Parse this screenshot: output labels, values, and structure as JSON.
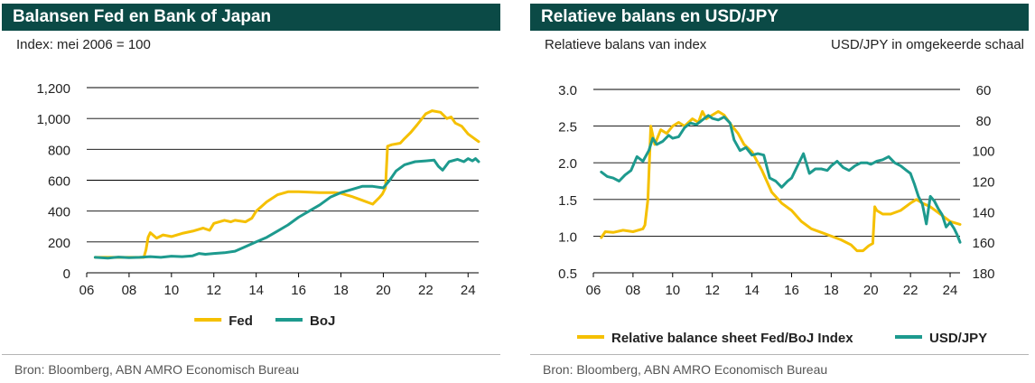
{
  "colors": {
    "header_bg": "#0b4a46",
    "fed": "#f5c000",
    "boj": "#1d9a8e",
    "grid": "#000000"
  },
  "left": {
    "title": "Balansen Fed en Bank of Japan",
    "subtitle": "Index: mei 2006 = 100",
    "source": "Bron: Bloomberg, ABN AMRO Economisch Bureau",
    "legend": [
      "Fed",
      "BoJ"
    ]
  },
  "right": {
    "title": "Relatieve balans en USD/JPY",
    "subtitle_left": "Relatieve balans van index",
    "subtitle_right": "USD/JPY in omgekeerde schaal",
    "source": "Bron: Bloomberg, ABN AMRO Economisch Bureau",
    "legend": [
      "Relative balance sheet Fed/BoJ Index",
      "USD/JPY"
    ]
  },
  "chart_data": [
    {
      "type": "line",
      "title": "Balansen Fed en Bank of Japan",
      "xlabel": "",
      "ylabel": "Index: mei 2006 = 100",
      "x_ticks": [
        "06",
        "08",
        "10",
        "12",
        "14",
        "16",
        "18",
        "20",
        "22",
        "24"
      ],
      "xlim": [
        2006,
        2024.5
      ],
      "y_ticks": [
        "0",
        "200",
        "400",
        "600",
        "800",
        "1,000",
        "1,200"
      ],
      "ylim": [
        0,
        1200
      ],
      "grid": "horizontal",
      "legend_position": "bottom",
      "series": [
        {
          "name": "Fed",
          "color": "#f5c000",
          "points": [
            [
              2006.4,
              100
            ],
            [
              2007,
              100
            ],
            [
              2008,
              100
            ],
            [
              2008.7,
              100
            ],
            [
              2008.8,
              150
            ],
            [
              2008.9,
              230
            ],
            [
              2009,
              260
            ],
            [
              2009.3,
              225
            ],
            [
              2009.6,
              245
            ],
            [
              2010,
              235
            ],
            [
              2010.5,
              255
            ],
            [
              2011,
              270
            ],
            [
              2011.5,
              290
            ],
            [
              2011.8,
              275
            ],
            [
              2012,
              320
            ],
            [
              2012.5,
              340
            ],
            [
              2012.8,
              330
            ],
            [
              2013,
              340
            ],
            [
              2013.5,
              330
            ],
            [
              2013.8,
              355
            ],
            [
              2014,
              400
            ],
            [
              2014.5,
              460
            ],
            [
              2015,
              505
            ],
            [
              2015.5,
              525
            ],
            [
              2016,
              525
            ],
            [
              2017,
              520
            ],
            [
              2017.7,
              520
            ],
            [
              2018,
              515
            ],
            [
              2018.5,
              495
            ],
            [
              2019,
              470
            ],
            [
              2019.5,
              445
            ],
            [
              2019.8,
              485
            ],
            [
              2019.95,
              510
            ],
            [
              2020.1,
              550
            ],
            [
              2020.2,
              820
            ],
            [
              2020.4,
              830
            ],
            [
              2020.8,
              840
            ],
            [
              2021,
              870
            ],
            [
              2021.3,
              910
            ],
            [
              2021.6,
              960
            ],
            [
              2022,
              1030
            ],
            [
              2022.3,
              1050
            ],
            [
              2022.7,
              1040
            ],
            [
              2023,
              1000
            ],
            [
              2023.2,
              1010
            ],
            [
              2023.4,
              970
            ],
            [
              2023.7,
              950
            ],
            [
              2024,
              900
            ],
            [
              2024.3,
              870
            ],
            [
              2024.5,
              850
            ]
          ]
        },
        {
          "name": "BoJ",
          "color": "#1d9a8e",
          "points": [
            [
              2006.4,
              100
            ],
            [
              2007,
              95
            ],
            [
              2007.5,
              102
            ],
            [
              2008,
              98
            ],
            [
              2008.5,
              100
            ],
            [
              2009,
              105
            ],
            [
              2009.5,
              100
            ],
            [
              2010,
              108
            ],
            [
              2010.5,
              105
            ],
            [
              2011,
              110
            ],
            [
              2011.3,
              125
            ],
            [
              2011.6,
              120
            ],
            [
              2012,
              125
            ],
            [
              2012.5,
              130
            ],
            [
              2013,
              140
            ],
            [
              2013.5,
              170
            ],
            [
              2014,
              200
            ],
            [
              2014.5,
              230
            ],
            [
              2015,
              270
            ],
            [
              2015.5,
              310
            ],
            [
              2016,
              360
            ],
            [
              2016.5,
              400
            ],
            [
              2017,
              440
            ],
            [
              2017.5,
              490
            ],
            [
              2018,
              520
            ],
            [
              2018.5,
              540
            ],
            [
              2019,
              560
            ],
            [
              2019.5,
              560
            ],
            [
              2020,
              550
            ],
            [
              2020.3,
              600
            ],
            [
              2020.6,
              660
            ],
            [
              2021,
              700
            ],
            [
              2021.5,
              720
            ],
            [
              2022,
              725
            ],
            [
              2022.4,
              730
            ],
            [
              2022.6,
              690
            ],
            [
              2022.8,
              665
            ],
            [
              2023.1,
              720
            ],
            [
              2023.5,
              735
            ],
            [
              2023.8,
              720
            ],
            [
              2024,
              740
            ],
            [
              2024.2,
              725
            ],
            [
              2024.35,
              740
            ],
            [
              2024.5,
              720
            ]
          ]
        }
      ]
    },
    {
      "type": "line",
      "title": "Relatieve balans en USD/JPY",
      "xlabel": "",
      "ylabel": "Relatieve balans van index",
      "ylabel_right": "USD/JPY in omgekeerde schaal",
      "x_ticks": [
        "06",
        "08",
        "10",
        "12",
        "14",
        "16",
        "18",
        "20",
        "22",
        "24"
      ],
      "xlim": [
        2006,
        2024.5
      ],
      "y_ticks": [
        "0.5",
        "1.0",
        "1.5",
        "2.0",
        "2.5",
        "3.0"
      ],
      "ylim": [
        0.5,
        3.0
      ],
      "y2_ticks": [
        "60",
        "80",
        "100",
        "120",
        "140",
        "160",
        "180"
      ],
      "y2lim": [
        60,
        180
      ],
      "y2_inverted": true,
      "grid": "horizontal",
      "legend_position": "bottom",
      "series": [
        {
          "name": "Relative balance sheet Fed/BoJ Index",
          "color": "#f5c000",
          "axis": "left",
          "points": [
            [
              2006.4,
              0.98
            ],
            [
              2006.6,
              1.06
            ],
            [
              2007,
              1.05
            ],
            [
              2007.5,
              1.08
            ],
            [
              2008,
              1.06
            ],
            [
              2008.5,
              1.1
            ],
            [
              2008.6,
              1.15
            ],
            [
              2008.75,
              1.5
            ],
            [
              2008.9,
              2.5
            ],
            [
              2009.1,
              2.25
            ],
            [
              2009.4,
              2.45
            ],
            [
              2009.7,
              2.4
            ],
            [
              2010,
              2.5
            ],
            [
              2010.3,
              2.55
            ],
            [
              2010.6,
              2.5
            ],
            [
              2011,
              2.6
            ],
            [
              2011.3,
              2.55
            ],
            [
              2011.5,
              2.7
            ],
            [
              2011.7,
              2.6
            ],
            [
              2012,
              2.65
            ],
            [
              2012.3,
              2.7
            ],
            [
              2012.6,
              2.65
            ],
            [
              2013,
              2.5
            ],
            [
              2013.3,
              2.4
            ],
            [
              2013.6,
              2.25
            ],
            [
              2014,
              2.15
            ],
            [
              2014.5,
              1.9
            ],
            [
              2015,
              1.6
            ],
            [
              2015.5,
              1.45
            ],
            [
              2016,
              1.35
            ],
            [
              2016.5,
              1.2
            ],
            [
              2017,
              1.1
            ],
            [
              2017.5,
              1.05
            ],
            [
              2018,
              1.0
            ],
            [
              2018.5,
              0.95
            ],
            [
              2019,
              0.88
            ],
            [
              2019.3,
              0.8
            ],
            [
              2019.6,
              0.8
            ],
            [
              2019.9,
              0.87
            ],
            [
              2020.1,
              0.9
            ],
            [
              2020.2,
              1.4
            ],
            [
              2020.3,
              1.35
            ],
            [
              2020.6,
              1.3
            ],
            [
              2021,
              1.3
            ],
            [
              2021.5,
              1.35
            ],
            [
              2022,
              1.45
            ],
            [
              2022.3,
              1.5
            ],
            [
              2022.6,
              1.45
            ],
            [
              2023,
              1.4
            ],
            [
              2023.5,
              1.3
            ],
            [
              2024,
              1.2
            ],
            [
              2024.5,
              1.16
            ]
          ]
        },
        {
          "name": "USD/JPY",
          "color": "#1d9a8e",
          "axis": "right",
          "points": [
            [
              2006.4,
              114
            ],
            [
              2006.7,
              117
            ],
            [
              2007,
              118
            ],
            [
              2007.3,
              120
            ],
            [
              2007.6,
              116
            ],
            [
              2007.9,
              113
            ],
            [
              2008.2,
              104
            ],
            [
              2008.5,
              107
            ],
            [
              2008.8,
              100
            ],
            [
              2009,
              92
            ],
            [
              2009.2,
              96
            ],
            [
              2009.5,
              94
            ],
            [
              2009.8,
              90
            ],
            [
              2010,
              92
            ],
            [
              2010.3,
              91
            ],
            [
              2010.6,
              85
            ],
            [
              2010.9,
              82
            ],
            [
              2011.2,
              83
            ],
            [
              2011.5,
              80
            ],
            [
              2011.8,
              77
            ],
            [
              2012,
              79
            ],
            [
              2012.3,
              80
            ],
            [
              2012.6,
              78
            ],
            [
              2012.9,
              82
            ],
            [
              2013.1,
              93
            ],
            [
              2013.4,
              100
            ],
            [
              2013.7,
              98
            ],
            [
              2014,
              103
            ],
            [
              2014.3,
              102
            ],
            [
              2014.6,
              103
            ],
            [
              2014.9,
              118
            ],
            [
              2015.2,
              120
            ],
            [
              2015.5,
              124
            ],
            [
              2015.8,
              120
            ],
            [
              2016,
              118
            ],
            [
              2016.3,
              110
            ],
            [
              2016.6,
              102
            ],
            [
              2016.9,
              115
            ],
            [
              2017.2,
              112
            ],
            [
              2017.5,
              112
            ],
            [
              2017.8,
              113
            ],
            [
              2018,
              110
            ],
            [
              2018.3,
              107
            ],
            [
              2018.6,
              111
            ],
            [
              2018.9,
              113
            ],
            [
              2019.2,
              110
            ],
            [
              2019.5,
              108
            ],
            [
              2019.8,
              108
            ],
            [
              2020,
              109
            ],
            [
              2020.3,
              107
            ],
            [
              2020.6,
              106
            ],
            [
              2020.9,
              104
            ],
            [
              2021.2,
              108
            ],
            [
              2021.5,
              110
            ],
            [
              2021.8,
              113
            ],
            [
              2022,
              115
            ],
            [
              2022.2,
              122
            ],
            [
              2022.4,
              130
            ],
            [
              2022.6,
              135
            ],
            [
              2022.8,
              148
            ],
            [
              2023,
              130
            ],
            [
              2023.2,
              133
            ],
            [
              2023.4,
              138
            ],
            [
              2023.6,
              142
            ],
            [
              2023.8,
              150
            ],
            [
              2024,
              147
            ],
            [
              2024.2,
              151
            ],
            [
              2024.35,
              155
            ],
            [
              2024.5,
              160
            ]
          ]
        }
      ]
    }
  ]
}
